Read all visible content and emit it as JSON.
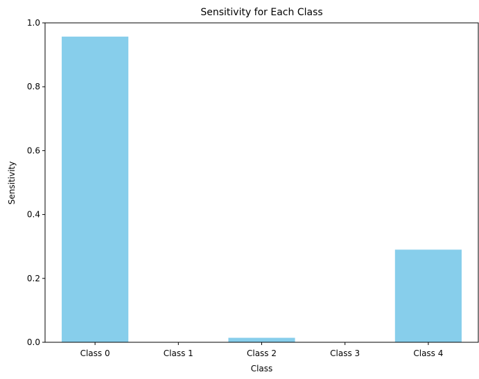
{
  "chart_data": {
    "type": "bar",
    "title": "Sensitivity for Each Class",
    "xlabel": "Class",
    "ylabel": "Sensitivity",
    "categories": [
      "Class 0",
      "Class 1",
      "Class 2",
      "Class 3",
      "Class 4"
    ],
    "values": [
      0.957,
      0.0,
      0.014,
      0.0,
      0.29
    ],
    "ylim": [
      0,
      1.0
    ],
    "yticks": [
      0.0,
      0.2,
      0.4,
      0.6,
      0.8,
      1.0
    ],
    "ytick_labels": [
      "0.0",
      "0.2",
      "0.4",
      "0.6",
      "0.8",
      "1.0"
    ],
    "bar_color": "#87ceeb",
    "grid": false,
    "legend": "none"
  }
}
